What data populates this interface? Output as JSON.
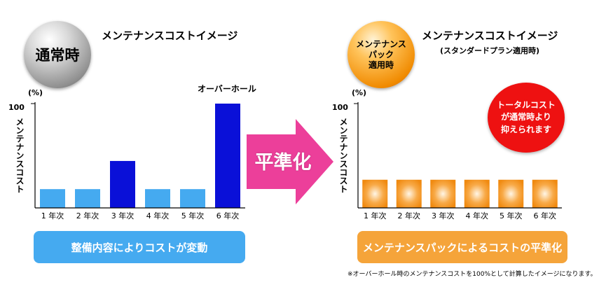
{
  "left": {
    "sphere_label": "通常時",
    "title": "メンテナンスコストイメージ",
    "unit": "(%)",
    "y_max_label": "100",
    "ylabel": "メンテナンスコスト",
    "overhaul_label": "オーバーホール",
    "caption": "整備内容によりコストが変動"
  },
  "middle": {
    "arrow_label": "平準化"
  },
  "right": {
    "sphere_label": "メンテナンス\nパック\n適用時",
    "title": "メンテナンスコストイメージ",
    "subtitle": "(スタンダードプラン適用時)",
    "unit": "(%)",
    "y_max_label": "100",
    "ylabel": "メンテナンスコスト",
    "callout": "トータルコスト\nが通常時より\n抑えられます",
    "caption": "メンテナンスパックによるコストの平準化",
    "footnote": "※オーバーホール時のメンテナンスコストを100%として計算したイメージになります。"
  },
  "colors": {
    "light_blue": "#45aaf0",
    "dark_blue": "#0a10d8",
    "orange": "#f5a43a",
    "pink": "#ec3f9a",
    "red": "#ee1111"
  },
  "chart_data": [
    {
      "type": "bar",
      "categories": [
        "1 年次",
        "2 年次",
        "3 年次",
        "4 年次",
        "5 年次",
        "6 年次"
      ],
      "values": [
        18,
        18,
        45,
        18,
        18,
        100
      ],
      "highlight": [
        false,
        false,
        true,
        false,
        false,
        true
      ],
      "ylim": [
        0,
        100
      ],
      "ylabel": "メンテナンスコスト",
      "colors": [
        "#45aaf0",
        "#0a10d8"
      ]
    },
    {
      "type": "bar",
      "categories": [
        "1 年次",
        "2 年次",
        "3 年次",
        "4 年次",
        "5 年次",
        "6 年次"
      ],
      "values": [
        27,
        27,
        27,
        27,
        27,
        27
      ],
      "ylim": [
        0,
        100
      ],
      "ylabel": "メンテナンスコスト",
      "colors": [
        "#f5a43a"
      ]
    }
  ]
}
